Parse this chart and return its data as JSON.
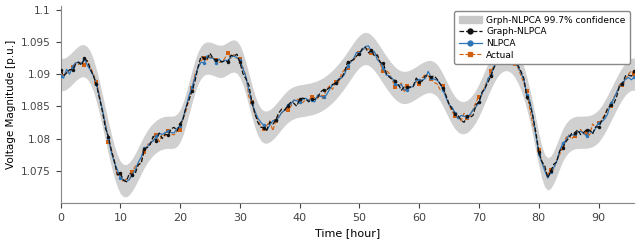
{
  "title": "",
  "xlabel": "Time [hour]",
  "ylabel": "Voltage Magnitude [p.u.]",
  "xlim": [
    0,
    96
  ],
  "ylim": [
    1.07,
    1.1
  ],
  "yticks": [
    1.075,
    1.08,
    1.085,
    1.09,
    1.095,
    1.1
  ],
  "ytick_labels": [
    "1.075",
    "1.08",
    "1.085",
    "1.09",
    "1.095",
    "1.1"
  ],
  "xticks": [
    0,
    10,
    20,
    30,
    40,
    50,
    60,
    70,
    80,
    90
  ],
  "legend_labels": [
    "Grph-NLPCA 99.7% confidence",
    "Graph-NLPCA",
    "NLPCA",
    "Actual"
  ],
  "conf_color": "#c8c8c8",
  "graph_nlpca_color": "#111111",
  "nlpca_color": "#2e75b6",
  "actual_color": "#d06010",
  "figsize": [
    6.4,
    2.44
  ],
  "dpi": 100,
  "key_points": {
    "t": [
      0,
      2,
      5,
      10,
      14,
      18,
      20,
      23,
      27,
      30,
      33,
      35,
      38,
      41,
      44,
      48,
      51,
      54,
      57,
      60,
      63,
      66,
      70,
      73,
      76,
      79,
      81,
      84,
      87,
      90,
      93,
      96
    ],
    "v": [
      1.09,
      1.091,
      1.091,
      1.074,
      1.078,
      1.081,
      1.082,
      1.091,
      1.092,
      1.092,
      1.083,
      1.082,
      1.085,
      1.086,
      1.087,
      1.091,
      1.094,
      1.091,
      1.088,
      1.089,
      1.089,
      1.084,
      1.086,
      1.092,
      1.092,
      1.083,
      1.075,
      1.079,
      1.081,
      1.082,
      1.087,
      1.09
    ]
  }
}
